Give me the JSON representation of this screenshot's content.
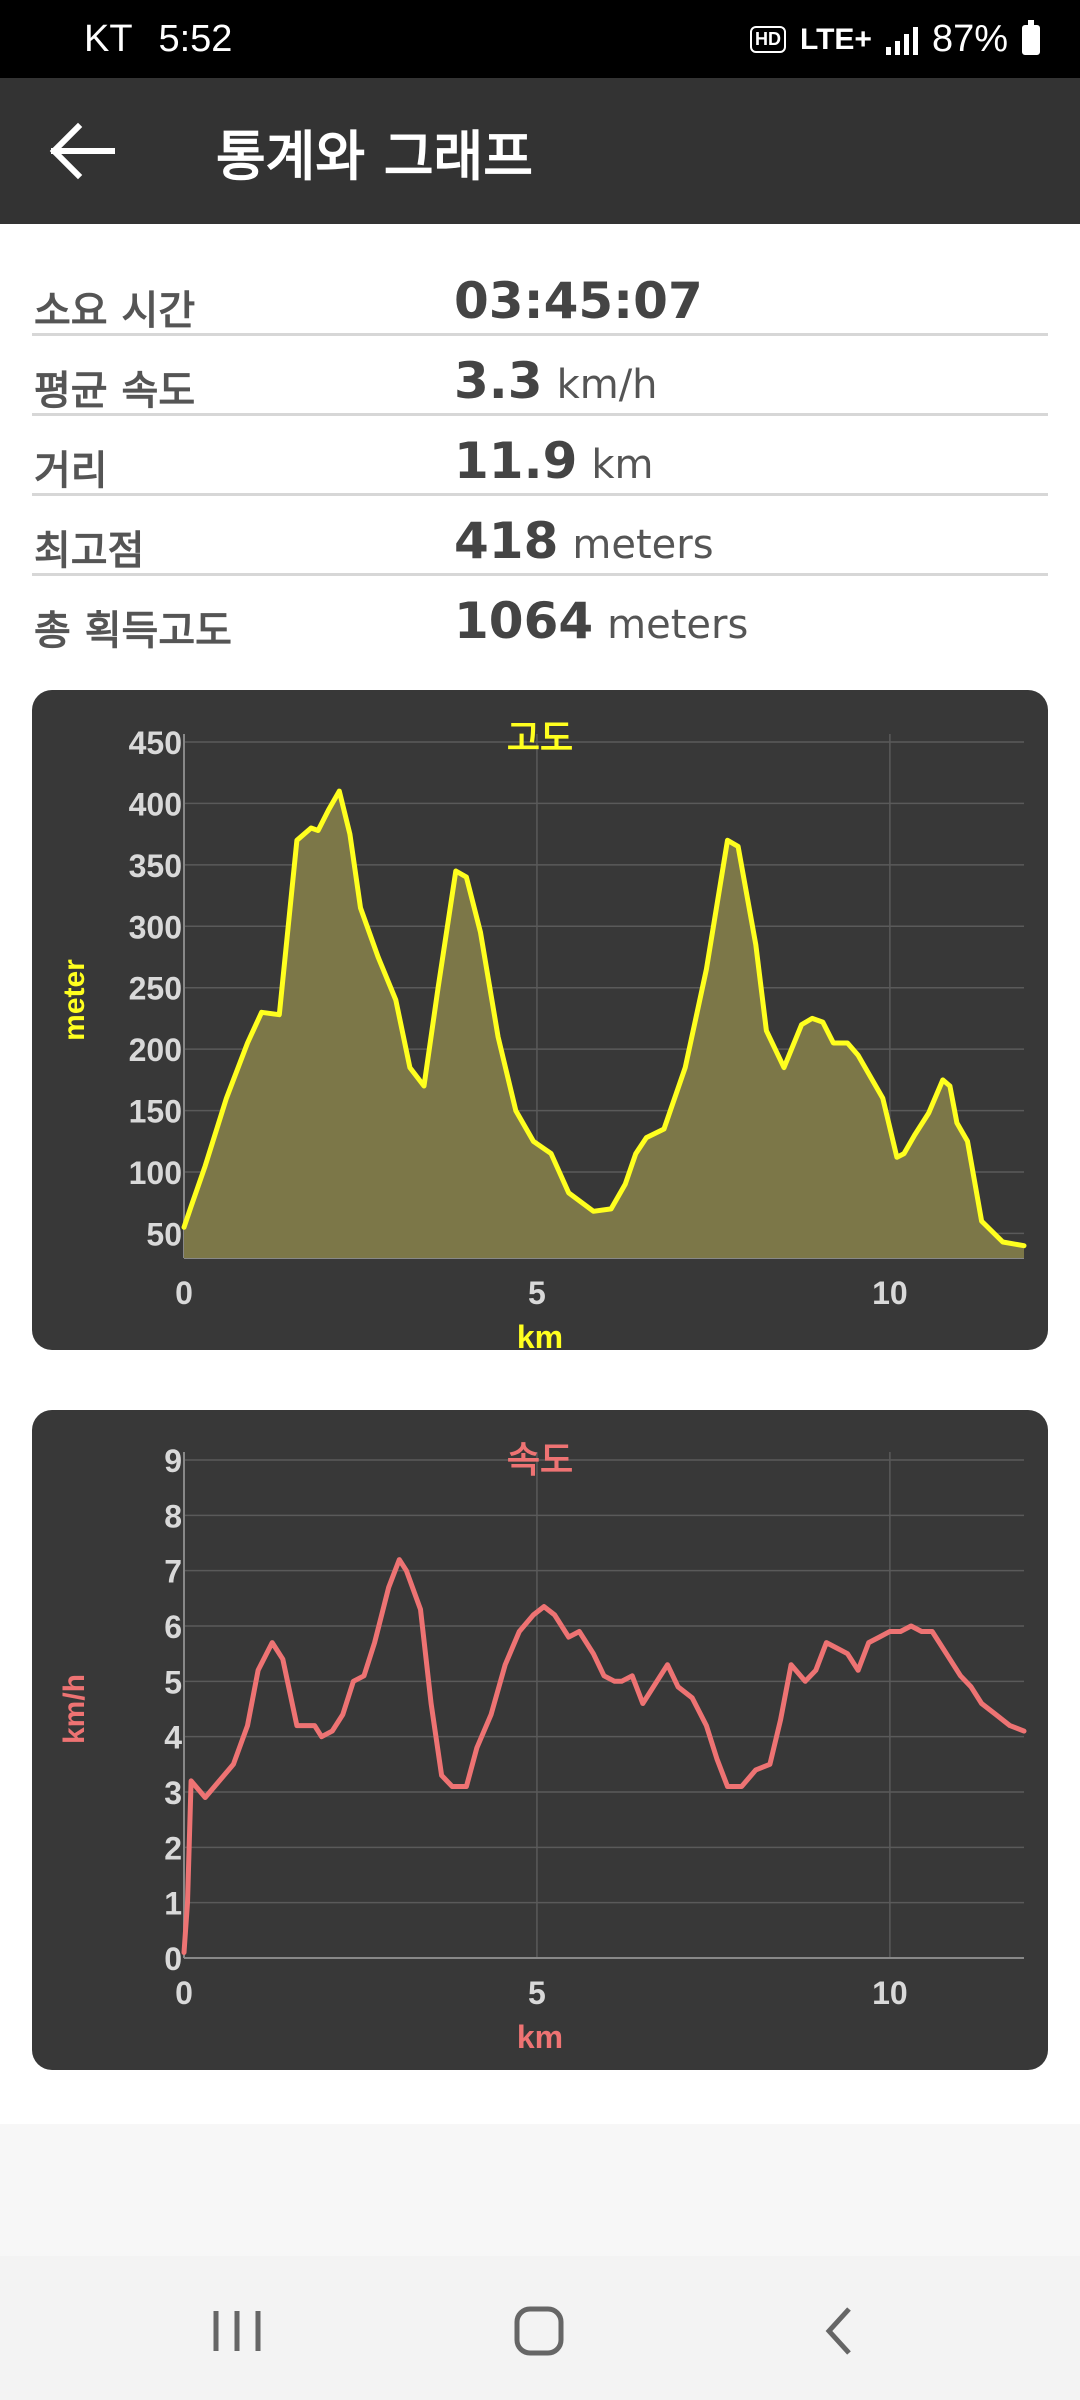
{
  "status_bar": {
    "carrier": "KT",
    "time": "5:52",
    "hd_badge": "HD",
    "network": "LTE+",
    "battery_percent": "87%"
  },
  "app_bar": {
    "title": "통계와 그래프"
  },
  "stats": [
    {
      "label": "소요 시간",
      "value": "03:45:07",
      "unit": ""
    },
    {
      "label": "평균 속도",
      "value": "3.3",
      "unit": "km/h"
    },
    {
      "label": "거리",
      "value": "11.9",
      "unit": "km"
    },
    {
      "label": "최고점",
      "value": "418",
      "unit": "meters"
    },
    {
      "label": "총 획득고도",
      "value": "1064",
      "unit": "meters"
    }
  ],
  "colors": {
    "altitude_line": "#ffff1f",
    "altitude_fill": "#7c7748",
    "speed_line": "#ee7373",
    "card_bg": "#383838",
    "grid": "#5a5a5a",
    "tick_text": "#d9d9d9"
  },
  "chart_data": [
    {
      "type": "area",
      "title": "고도",
      "xlabel": "km",
      "ylabel": "meter",
      "xlim": [
        0,
        11.9
      ],
      "ylim": [
        30,
        450
      ],
      "xticks": [
        0,
        5,
        10
      ],
      "yticks": [
        50,
        100,
        150,
        200,
        250,
        300,
        350,
        400,
        450
      ],
      "x": [
        0,
        0.1,
        0.3,
        0.6,
        0.9,
        1.1,
        1.35,
        1.6,
        1.8,
        1.9,
        2.05,
        2.2,
        2.35,
        2.5,
        2.75,
        3.0,
        3.2,
        3.4,
        3.6,
        3.85,
        4.0,
        4.2,
        4.45,
        4.7,
        4.95,
        5.2,
        5.45,
        5.8,
        6.05,
        6.25,
        6.4,
        6.55,
        6.8,
        7.1,
        7.4,
        7.7,
        7.85,
        8.1,
        8.25,
        8.5,
        8.75,
        8.9,
        9.05,
        9.2,
        9.4,
        9.55,
        9.65,
        9.9,
        10.1,
        10.2,
        10.35,
        10.55,
        10.75,
        10.85,
        10.95,
        11.1,
        11.3,
        11.6,
        11.9
      ],
      "y": [
        55,
        72,
        105,
        160,
        205,
        230,
        228,
        370,
        380,
        378,
        395,
        410,
        375,
        315,
        275,
        240,
        185,
        170,
        250,
        345,
        340,
        295,
        210,
        150,
        125,
        115,
        83,
        68,
        70,
        90,
        115,
        128,
        135,
        185,
        265,
        370,
        365,
        285,
        215,
        185,
        220,
        225,
        222,
        205,
        205,
        195,
        185,
        160,
        112,
        115,
        130,
        148,
        175,
        170,
        140,
        125,
        60,
        43,
        40
      ]
    },
    {
      "type": "line",
      "title": "속도",
      "xlabel": "km",
      "ylabel": "km/h",
      "xlim": [
        0,
        11.9
      ],
      "ylim": [
        0,
        9
      ],
      "xticks": [
        0,
        5,
        10
      ],
      "yticks": [
        0,
        1,
        2,
        3,
        4,
        5,
        6,
        7,
        8,
        9
      ],
      "x": [
        0,
        0.05,
        0.1,
        0.3,
        0.5,
        0.7,
        0.9,
        1.05,
        1.25,
        1.4,
        1.6,
        1.75,
        1.85,
        1.95,
        2.1,
        2.25,
        2.4,
        2.55,
        2.7,
        2.9,
        3.05,
        3.15,
        3.35,
        3.5,
        3.65,
        3.8,
        4.0,
        4.15,
        4.35,
        4.55,
        4.75,
        4.95,
        5.1,
        5.25,
        5.45,
        5.6,
        5.8,
        5.95,
        6.1,
        6.2,
        6.35,
        6.5,
        6.7,
        6.85,
        7.0,
        7.2,
        7.4,
        7.55,
        7.7,
        7.9,
        8.1,
        8.3,
        8.45,
        8.6,
        8.8,
        8.95,
        9.1,
        9.25,
        9.4,
        9.55,
        9.7,
        9.85,
        10.0,
        10.15,
        10.3,
        10.45,
        10.6,
        10.8,
        11.0,
        11.15,
        11.3,
        11.5,
        11.7,
        11.9
      ],
      "y": [
        0.1,
        1.0,
        3.2,
        2.9,
        3.2,
        3.5,
        4.2,
        5.2,
        5.7,
        5.4,
        4.2,
        4.2,
        4.2,
        4.0,
        4.1,
        4.4,
        5.0,
        5.1,
        5.7,
        6.7,
        7.2,
        7.0,
        6.3,
        4.6,
        3.3,
        3.1,
        3.1,
        3.8,
        4.4,
        5.3,
        5.9,
        6.2,
        6.35,
        6.2,
        5.8,
        5.9,
        5.5,
        5.1,
        5.0,
        5.0,
        5.1,
        4.6,
        5.0,
        5.3,
        4.9,
        4.7,
        4.2,
        3.6,
        3.1,
        3.1,
        3.4,
        3.5,
        4.3,
        5.3,
        5.0,
        5.2,
        5.7,
        5.6,
        5.5,
        5.2,
        5.7,
        5.8,
        5.9,
        5.9,
        6.0,
        5.9,
        5.9,
        5.5,
        5.1,
        4.9,
        4.6,
        4.4,
        4.2,
        4.1
      ]
    }
  ]
}
